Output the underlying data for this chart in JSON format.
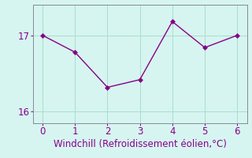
{
  "x": [
    0,
    1,
    2,
    3,
    4,
    5,
    6
  ],
  "y": [
    17.0,
    16.78,
    16.32,
    16.42,
    17.18,
    16.84,
    17.0
  ],
  "line_color": "#880088",
  "marker_color": "#880088",
  "background_color": "#d6f5f0",
  "grid_color": "#aaddcc",
  "axis_color": "#888899",
  "xlabel": "Windchill (Refroidissement éolien,°C)",
  "xlabel_color": "#880088",
  "tick_color": "#880088",
  "xlim": [
    -0.3,
    6.3
  ],
  "ylim": [
    15.85,
    17.4
  ],
  "yticks": [
    16,
    17
  ],
  "xticks": [
    0,
    1,
    2,
    3,
    4,
    5,
    6
  ],
  "xlabel_fontsize": 8.5,
  "tick_fontsize": 8.5,
  "line_width": 1.0,
  "marker_size": 3.0
}
